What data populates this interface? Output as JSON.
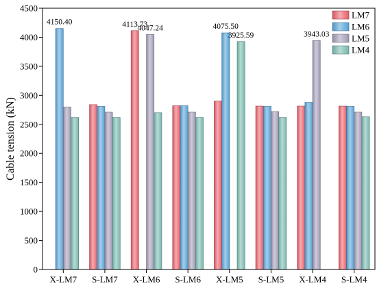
{
  "chart_data": {
    "type": "bar",
    "ylabel": "Cable  tension (kN)",
    "xlabel": "",
    "ylim": [
      0,
      4500
    ],
    "yticks": [
      0,
      500,
      1000,
      1500,
      2000,
      2500,
      3000,
      3500,
      4000,
      4500
    ],
    "categories": [
      "X-LM7",
      "S-LM7",
      "X-LM6",
      "S-LM6",
      "X-LM5",
      "S-LM5",
      "X-LM4",
      "S-LM4"
    ],
    "series": [
      {
        "name": "LM7",
        "color": "#f06470",
        "values": [
          null,
          2840,
          4113.73,
          2820,
          2900,
          2815,
          2815,
          2815
        ]
      },
      {
        "name": "LM6",
        "color": "#5aa8dc",
        "values": [
          4150.4,
          2810,
          null,
          2820,
          4075.5,
          2810,
          2880,
          2810
        ]
      },
      {
        "name": "LM5",
        "color": "#a8a0bc",
        "values": [
          2800,
          2710,
          4047.24,
          2710,
          null,
          2720,
          3943.03,
          2710
        ]
      },
      {
        "name": "LM4",
        "color": "#7cc0b4",
        "values": [
          2620,
          2620,
          2700,
          2620,
          3925.59,
          2620,
          null,
          2630
        ]
      }
    ],
    "data_labels": [
      {
        "category": "X-LM7",
        "series": "LM6",
        "text": "4150.40"
      },
      {
        "category": "X-LM6",
        "series": "LM7",
        "text": "4113.73"
      },
      {
        "category": "X-LM6",
        "series": "LM5",
        "text": "4047.24"
      },
      {
        "category": "X-LM5",
        "series": "LM6",
        "text": "4075.50"
      },
      {
        "category": "X-LM5",
        "series": "LM4",
        "text": "3925.59"
      },
      {
        "category": "X-LM4",
        "series": "LM5",
        "text": "3943.03"
      }
    ],
    "legend": {
      "position": "top-right",
      "entries": [
        "LM7",
        "LM6",
        "LM5",
        "LM4"
      ]
    },
    "grid": false
  }
}
